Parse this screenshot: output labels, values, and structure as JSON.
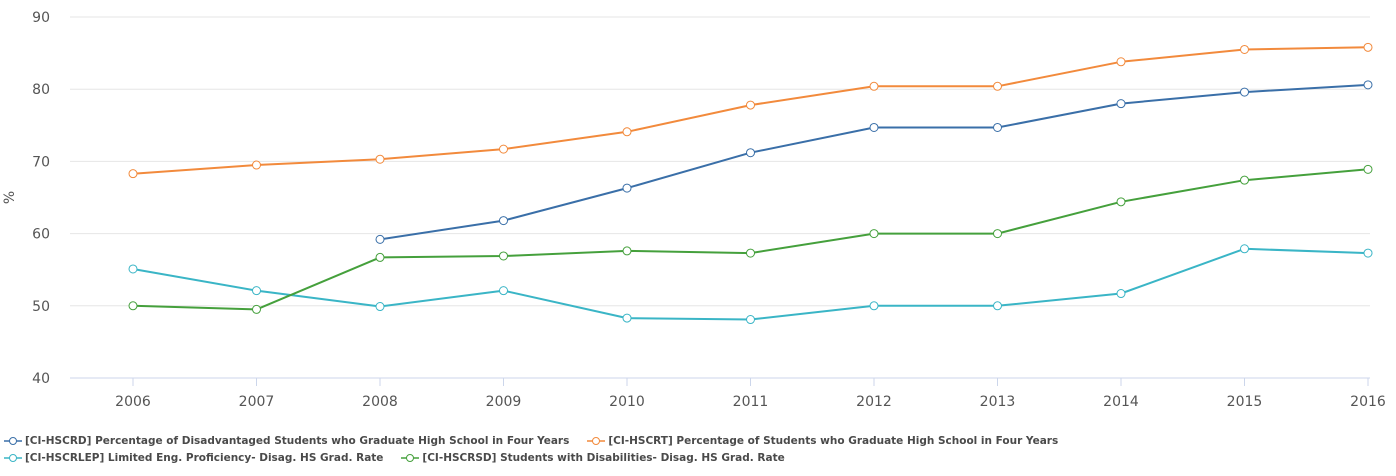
{
  "chart_data": {
    "type": "line",
    "title": "",
    "xlabel": "",
    "ylabel": "%",
    "ylim": [
      40,
      90
    ],
    "yticks": [
      40,
      50,
      60,
      70,
      80,
      90
    ],
    "grid": true,
    "legend_position": "bottom",
    "categories": [
      "2006",
      "2007",
      "2008",
      "2009",
      "2010",
      "2011",
      "2012",
      "2013",
      "2014",
      "2015",
      "2016"
    ],
    "series": [
      {
        "name": "[CI-HSCRD] Percentage of Disadvantaged Students who Graduate High School in Four Years",
        "color": "#3a6fa8",
        "values": [
          null,
          null,
          59.2,
          61.8,
          66.3,
          71.2,
          74.7,
          74.7,
          78.0,
          79.6,
          80.6
        ]
      },
      {
        "name": "[CI-HSCRT] Percentage of Students who Graduate High School in Four Years",
        "color": "#f28a3c",
        "values": [
          68.3,
          69.5,
          70.3,
          71.7,
          74.1,
          77.8,
          80.4,
          80.4,
          83.8,
          85.5,
          85.8
        ]
      },
      {
        "name": "[CI-HSCRLEP] Limited Eng. Proficiency- Disag. HS Grad. Rate",
        "color": "#3ab5c6",
        "values": [
          55.1,
          52.1,
          49.9,
          52.1,
          48.3,
          48.1,
          50.0,
          50.0,
          51.7,
          57.9,
          57.3
        ]
      },
      {
        "name": "[CI-HSCRSD] Students with Disabilities- Disag. HS Grad. Rate",
        "color": "#45a03c",
        "values": [
          50.0,
          49.5,
          56.7,
          56.9,
          57.6,
          57.3,
          60.0,
          60.0,
          64.4,
          67.4,
          68.9
        ]
      }
    ]
  }
}
